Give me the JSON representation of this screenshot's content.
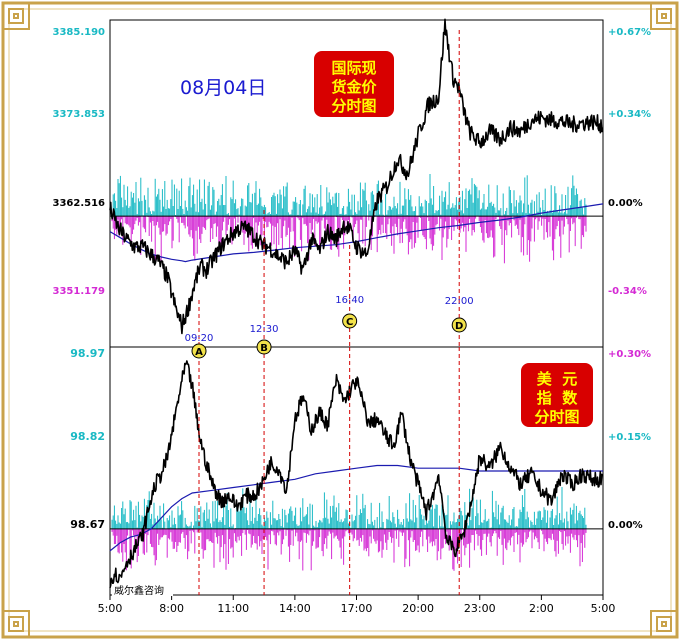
{
  "date_label": "08月04日",
  "watermark": "威尔鑫咨询",
  "colors": {
    "cyan": "#19b9c4",
    "magenta": "#d42ad4",
    "price": "#000000",
    "avg": "#1b1bb0",
    "badge_red": "#d80000",
    "badge_text": "#ffff00",
    "marker_line": "#d40000",
    "marker_fill": "#f2e24a",
    "frame_gold": "#c9a24a"
  },
  "top_panel": {
    "badge_lines": [
      "国际现",
      "货金价",
      "分时图"
    ],
    "left_ticks": [
      {
        "value": "3385.190",
        "color": "cyan"
      },
      {
        "value": "3373.853",
        "color": "cyan"
      },
      {
        "value": "3362.516",
        "color": "black"
      },
      {
        "value": "3351.179",
        "color": "magenta"
      }
    ],
    "right_ticks": [
      {
        "value": "+0.67%",
        "color": "cyan"
      },
      {
        "value": "+0.34%",
        "color": "cyan"
      },
      {
        "value": "0.00%",
        "color": "black"
      },
      {
        "value": "-0.34%",
        "color": "magenta"
      }
    ]
  },
  "bottom_panel": {
    "badge_lines": [
      "美  元",
      "指  数",
      "分时图"
    ],
    "left_ticks": [
      {
        "value": "98.97",
        "color": "cyan"
      },
      {
        "value": "98.82",
        "color": "cyan"
      },
      {
        "value": "98.67",
        "color": "black"
      }
    ],
    "right_ticks": [
      {
        "value": "+0.30%",
        "color": "magenta"
      },
      {
        "value": "+0.15%",
        "color": "cyan"
      },
      {
        "value": "0.00%",
        "color": "black"
      }
    ]
  },
  "x_ticks": [
    "5:00",
    "8:00",
    "11:00",
    "14:00",
    "17:00",
    "20:00",
    "23:00",
    "2:00",
    "5:00"
  ],
  "markers": [
    {
      "letter": "A",
      "time": "09:20"
    },
    {
      "letter": "B",
      "time": "12:30"
    },
    {
      "letter": "C",
      "time": "16:40"
    },
    {
      "letter": "D",
      "time": "22:00"
    }
  ],
  "chart_data": [
    {
      "type": "line",
      "title": "国际现货金价分时图",
      "x_domain": [
        0,
        24
      ],
      "ylim": [
        3345.5,
        3388
      ],
      "reference": 3362.516,
      "price": {
        "x": [
          0,
          0.4,
          0.8,
          1.2,
          1.6,
          2,
          2.4,
          2.8,
          3.2,
          3.5,
          3.8,
          4.1,
          4.4,
          4.7,
          5,
          5.4,
          5.8,
          6.2,
          6.6,
          7,
          7.4,
          7.8,
          8.2,
          8.6,
          9,
          9.4,
          9.8,
          10.2,
          10.6,
          11,
          11.4,
          11.67,
          12,
          12.5,
          13,
          13.5,
          14,
          14.5,
          15,
          15.5,
          16,
          16.3,
          16.7,
          17,
          17.2,
          17.5,
          18,
          18.5,
          19,
          19.5,
          20,
          20.5,
          21,
          21.5,
          22,
          22.5,
          23,
          23.5,
          24
        ],
        "y": [
          3363.5,
          3361,
          3359.5,
          3358.5,
          3358.5,
          3357.5,
          3356.5,
          3354.5,
          3350.5,
          3348.2,
          3350.5,
          3353.5,
          3356,
          3355.5,
          3356.8,
          3358.5,
          3359.8,
          3360.8,
          3361,
          3360,
          3358.8,
          3358.4,
          3357.3,
          3356.5,
          3358,
          3355.5,
          3359.5,
          3358,
          3360.5,
          3359.5,
          3361.5,
          3360.7,
          3358.5,
          3357.5,
          3364.5,
          3366.5,
          3370,
          3368,
          3373,
          3377,
          3378,
          3387.5,
          3380.5,
          3379,
          3376.5,
          3373.5,
          3372,
          3373.5,
          3372.5,
          3374,
          3373.5,
          3375,
          3375.3,
          3375,
          3374.8,
          3374.4,
          3374.6,
          3374.8,
          3374.3
        ]
      },
      "average": {
        "x": [
          0,
          0.5,
          1,
          1.5,
          2,
          2.5,
          3,
          3.5,
          3.67,
          4,
          5,
          6,
          7,
          8,
          9,
          10,
          11,
          12,
          13,
          14,
          15,
          16,
          17,
          18,
          19,
          20,
          21,
          22,
          23,
          24
        ],
        "y": [
          3360.5,
          3359.7,
          3358.9,
          3358.2,
          3357.6,
          3357.2,
          3356.9,
          3356.7,
          3356.6,
          3356.8,
          3357.2,
          3357.6,
          3357.8,
          3358.1,
          3358.4,
          3358.6,
          3358.8,
          3359.2,
          3359.7,
          3360.2,
          3360.6,
          3361,
          3361.3,
          3361.7,
          3362,
          3362.4,
          3362.9,
          3363.3,
          3363.7,
          3364.1
        ]
      }
    },
    {
      "type": "line",
      "title": "美元指数分时图",
      "x_domain": [
        0,
        24
      ],
      "ylim": [
        98.55,
        99.0
      ],
      "reference": 98.67,
      "price": {
        "x": [
          0,
          0.2,
          0.5,
          0.8,
          1,
          1.3,
          1.6,
          1.9,
          2.2,
          2.5,
          2.8,
          3.1,
          3.4,
          3.7,
          4,
          4.3,
          4.6,
          5,
          5.4,
          5.8,
          6.2,
          6.6,
          7,
          7.4,
          7.8,
          8.2,
          8.6,
          9,
          9.4,
          9.8,
          10.2,
          10.6,
          11,
          11.4,
          11.67,
          12,
          12.3,
          12.6,
          13,
          13.4,
          13.8,
          14.2,
          14.6,
          15,
          15.4,
          15.8,
          16,
          16.4,
          16.8,
          17.2,
          17.6,
          18,
          18.5,
          19,
          19.5,
          20,
          20.5,
          21,
          21.5,
          22,
          22.5,
          23,
          23.5,
          24
        ],
        "y": [
          98.57,
          98.59,
          98.58,
          98.61,
          98.62,
          98.64,
          98.66,
          98.71,
          98.75,
          98.77,
          98.8,
          98.86,
          98.92,
          98.97,
          98.93,
          98.85,
          98.8,
          98.75,
          98.72,
          98.73,
          98.71,
          98.73,
          98.73,
          98.75,
          98.79,
          98.78,
          98.74,
          98.87,
          98.91,
          98.85,
          98.88,
          98.86,
          98.94,
          98.9,
          98.92,
          98.94,
          98.9,
          98.86,
          98.87,
          98.84,
          98.82,
          98.88,
          98.8,
          98.75,
          98.7,
          98.74,
          98.77,
          98.65,
          98.63,
          98.66,
          98.72,
          98.8,
          98.78,
          98.82,
          98.78,
          98.75,
          98.77,
          98.74,
          98.72,
          98.77,
          98.75,
          98.77,
          98.76,
          98.76
        ]
      },
      "average": {
        "x": [
          0,
          0.5,
          1,
          1.5,
          2,
          2.5,
          3,
          3.5,
          4,
          5,
          6,
          7,
          8,
          9,
          10,
          11,
          12,
          13,
          14,
          15,
          16,
          17,
          18,
          19,
          20,
          21,
          22,
          23,
          24
        ],
        "y": [
          98.63,
          98.645,
          98.655,
          98.66,
          98.67,
          98.69,
          98.71,
          98.725,
          98.735,
          98.74,
          98.745,
          98.75,
          98.755,
          98.76,
          98.77,
          98.775,
          98.78,
          98.785,
          98.785,
          98.78,
          98.78,
          98.78,
          98.775,
          98.775,
          98.775,
          98.775,
          98.775,
          98.775,
          98.775
        ]
      }
    }
  ]
}
